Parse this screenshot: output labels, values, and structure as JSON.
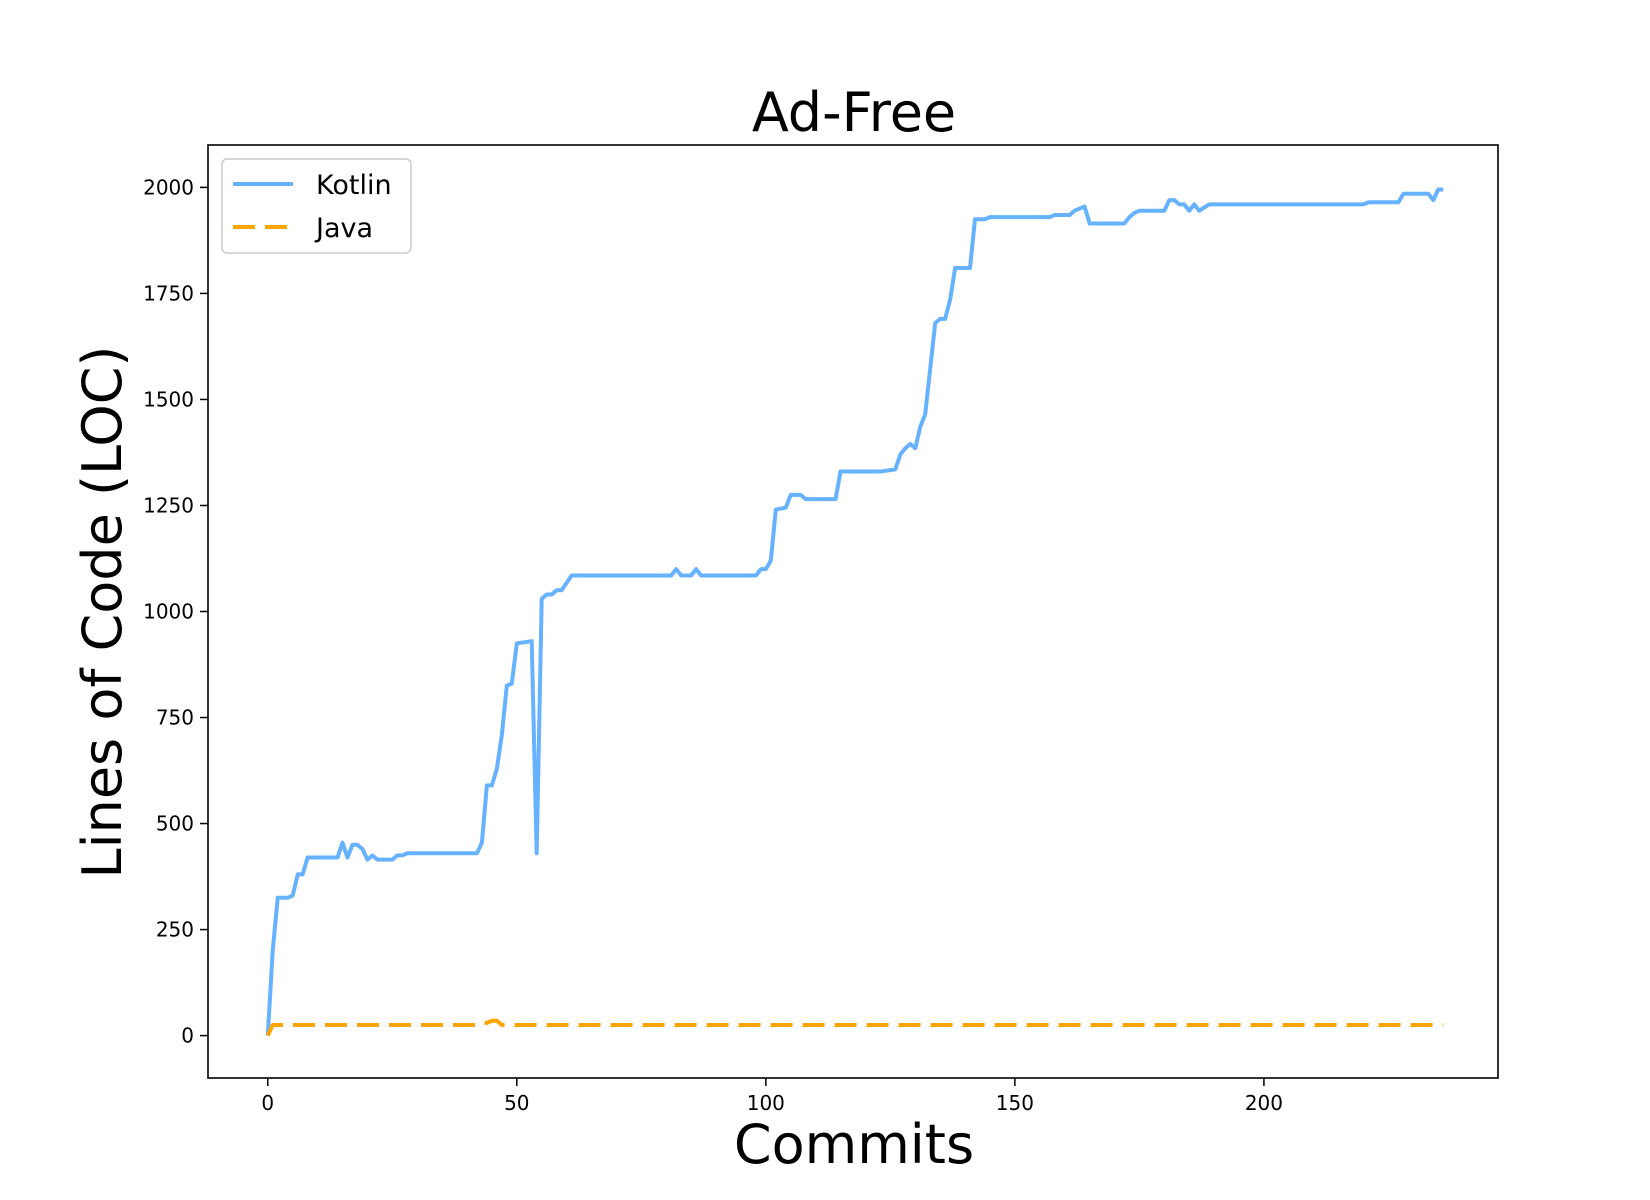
{
  "chart_data": {
    "type": "line",
    "title": "Ad-Free",
    "xlabel": "Commits",
    "ylabel": "Lines of Code (LOC)",
    "xlim": [
      -12,
      247
    ],
    "ylim": [
      -100,
      2100
    ],
    "x_ticks": [
      0,
      50,
      100,
      150,
      200
    ],
    "y_ticks": [
      0,
      250,
      500,
      750,
      1000,
      1250,
      1500,
      1750,
      2000
    ],
    "grid": false,
    "legend_position": "top-left",
    "series": [
      {
        "name": "Kotlin",
        "color": "#66b2ff",
        "style": "solid",
        "points": [
          [
            0,
            0
          ],
          [
            1,
            200
          ],
          [
            2,
            325
          ],
          [
            4,
            325
          ],
          [
            5,
            330
          ],
          [
            6,
            380
          ],
          [
            7,
            380
          ],
          [
            8,
            420
          ],
          [
            14,
            420
          ],
          [
            15,
            455
          ],
          [
            16,
            420
          ],
          [
            17,
            450
          ],
          [
            18,
            450
          ],
          [
            19,
            440
          ],
          [
            20,
            415
          ],
          [
            21,
            425
          ],
          [
            22,
            415
          ],
          [
            25,
            415
          ],
          [
            26,
            425
          ],
          [
            27,
            425
          ],
          [
            28,
            430
          ],
          [
            42,
            430
          ],
          [
            43,
            455
          ],
          [
            44,
            590
          ],
          [
            45,
            590
          ],
          [
            46,
            630
          ],
          [
            47,
            710
          ],
          [
            48,
            825
          ],
          [
            49,
            830
          ],
          [
            50,
            925
          ],
          [
            53,
            930
          ],
          [
            54,
            430
          ],
          [
            55,
            1030
          ],
          [
            56,
            1040
          ],
          [
            57,
            1040
          ],
          [
            58,
            1050
          ],
          [
            59,
            1050
          ],
          [
            61,
            1085
          ],
          [
            81,
            1085
          ],
          [
            82,
            1100
          ],
          [
            83,
            1085
          ],
          [
            85,
            1085
          ],
          [
            86,
            1100
          ],
          [
            87,
            1085
          ],
          [
            98,
            1085
          ],
          [
            99,
            1100
          ],
          [
            100,
            1100
          ],
          [
            101,
            1120
          ],
          [
            102,
            1240
          ],
          [
            104,
            1245
          ],
          [
            105,
            1275
          ],
          [
            107,
            1275
          ],
          [
            108,
            1265
          ],
          [
            114,
            1265
          ],
          [
            115,
            1330
          ],
          [
            123,
            1330
          ],
          [
            126,
            1335
          ],
          [
            127,
            1370
          ],
          [
            128,
            1385
          ],
          [
            129,
            1395
          ],
          [
            130,
            1385
          ],
          [
            131,
            1435
          ],
          [
            132,
            1465
          ],
          [
            134,
            1680
          ],
          [
            135,
            1690
          ],
          [
            136,
            1690
          ],
          [
            137,
            1735
          ],
          [
            138,
            1810
          ],
          [
            141,
            1810
          ],
          [
            142,
            1925
          ],
          [
            144,
            1925
          ],
          [
            145,
            1930
          ],
          [
            157,
            1930
          ],
          [
            158,
            1935
          ],
          [
            161,
            1935
          ],
          [
            162,
            1945
          ],
          [
            164,
            1955
          ],
          [
            165,
            1915
          ],
          [
            172,
            1915
          ],
          [
            173,
            1930
          ],
          [
            174,
            1940
          ],
          [
            175,
            1945
          ],
          [
            180,
            1945
          ],
          [
            181,
            1970
          ],
          [
            182,
            1970
          ],
          [
            183,
            1960
          ],
          [
            184,
            1960
          ],
          [
            185,
            1945
          ],
          [
            186,
            1960
          ],
          [
            187,
            1945
          ],
          [
            189,
            1960
          ],
          [
            220,
            1960
          ],
          [
            221,
            1965
          ],
          [
            227,
            1965
          ],
          [
            228,
            1985
          ],
          [
            233,
            1985
          ],
          [
            234,
            1970
          ],
          [
            235,
            1995
          ],
          [
            236,
            1995
          ]
        ]
      },
      {
        "name": "Java",
        "color": "#ffa500",
        "style": "dashed",
        "points": [
          [
            0,
            0
          ],
          [
            1,
            25
          ],
          [
            42,
            25
          ],
          [
            43,
            30
          ],
          [
            44,
            30
          ],
          [
            45,
            35
          ],
          [
            46,
            35
          ],
          [
            47,
            25
          ],
          [
            236,
            25
          ]
        ]
      }
    ]
  }
}
